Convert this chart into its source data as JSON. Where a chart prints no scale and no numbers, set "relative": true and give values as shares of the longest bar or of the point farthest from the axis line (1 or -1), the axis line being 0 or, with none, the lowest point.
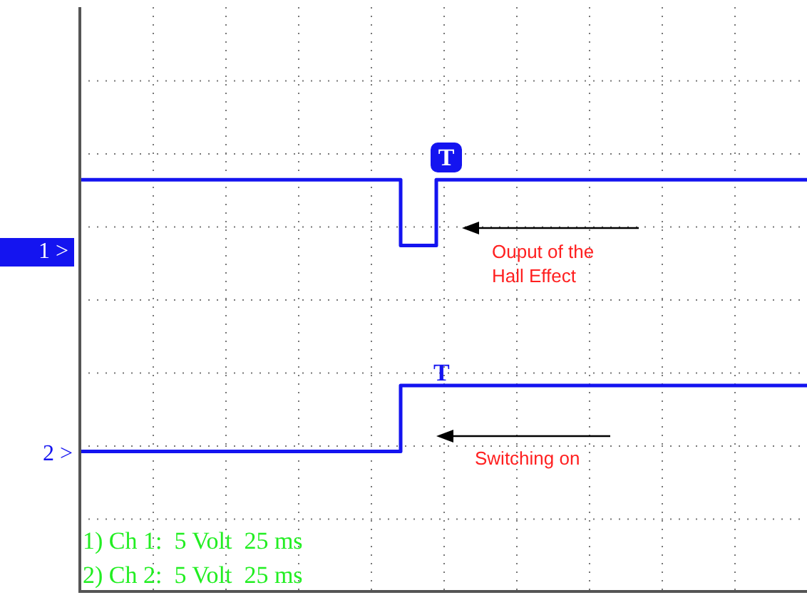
{
  "chart_data": {
    "type": "step",
    "relative": true,
    "grid": true,
    "legend": false,
    "tick_labels": false,
    "marker": "none",
    "line_style": "solid",
    "categories": [
      null,
      null,
      null,
      null,
      null,
      null,
      null,
      null,
      null,
      null,
      null,
      null,
      null,
      null,
      null,
      null,
      null,
      null,
      null,
      null,
      null,
      null,
      null,
      null,
      null,
      null,
      null,
      null,
      null,
      null,
      null,
      null,
      null,
      null,
      null,
      null,
      null,
      null,
      null,
      null,
      null,
      null,
      null,
      null,
      null,
      null,
      null,
      null,
      null,
      null,
      null,
      null,
      null,
      null,
      null,
      null,
      null,
      null,
      null,
      null,
      null,
      null,
      null,
      null,
      null,
      null,
      null,
      null,
      null,
      null,
      null,
      null,
      null,
      null,
      null,
      null,
      null,
      null,
      null,
      null,
      null,
      null,
      null,
      null,
      null,
      null,
      null,
      null,
      null,
      null,
      null,
      null,
      null,
      null,
      null,
      null,
      null,
      null,
      null,
      null,
      null,
      null,
      null
    ],
    "series": [
      {
        "color": "#1414f0",
        "values": [
          1,
          1,
          1,
          1,
          1,
          1,
          1,
          1,
          1,
          1,
          1,
          1,
          1,
          1,
          1,
          1,
          1,
          1,
          1,
          1,
          1,
          1,
          1,
          1,
          1,
          1,
          1,
          1,
          1,
          1,
          1,
          1,
          1,
          1,
          1,
          1,
          1,
          1,
          1,
          1,
          1,
          1,
          1,
          1,
          1,
          1,
          0.84,
          0.84,
          0.84,
          0.84,
          0.84,
          1,
          1,
          1,
          1,
          1,
          1,
          1,
          1,
          1,
          1,
          1,
          1,
          1,
          1,
          1,
          1,
          1,
          1,
          1,
          1,
          1,
          1,
          1,
          1,
          1,
          1,
          1,
          1,
          1,
          1,
          1,
          1,
          1,
          1,
          1,
          1,
          1,
          1,
          1,
          1,
          1,
          1,
          1,
          1,
          1,
          1,
          1,
          1,
          1,
          1,
          1,
          1
        ]
      },
      {
        "color": "#1414f0",
        "values": [
          0.34,
          0.34,
          0.34,
          0.34,
          0.34,
          0.34,
          0.34,
          0.34,
          0.34,
          0.34,
          0.34,
          0.34,
          0.34,
          0.34,
          0.34,
          0.34,
          0.34,
          0.34,
          0.34,
          0.34,
          0.34,
          0.34,
          0.34,
          0.34,
          0.34,
          0.34,
          0.34,
          0.34,
          0.34,
          0.34,
          0.34,
          0.34,
          0.34,
          0.34,
          0.34,
          0.34,
          0.34,
          0.34,
          0.34,
          0.34,
          0.34,
          0.34,
          0.34,
          0.34,
          0.34,
          0.34,
          0.5,
          0.5,
          0.5,
          0.5,
          0.5,
          0.5,
          0.5,
          0.5,
          0.5,
          0.5,
          0.5,
          0.5,
          0.5,
          0.5,
          0.5,
          0.5,
          0.5,
          0.5,
          0.5,
          0.5,
          0.5,
          0.5,
          0.5,
          0.5,
          0.5,
          0.5,
          0.5,
          0.5,
          0.5,
          0.5,
          0.5,
          0.5,
          0.5,
          0.5,
          0.5,
          0.5,
          0.5,
          0.5,
          0.5,
          0.5,
          0.5,
          0.5,
          0.5,
          0.5,
          0.5,
          0.5,
          0.5,
          0.5,
          0.5,
          0.5,
          0.5,
          0.5,
          0.5,
          0.5,
          0.5,
          0.5,
          0.5
        ]
      }
    ],
    "annotations": [
      "T",
      "T",
      "1 >",
      "2 >",
      "Ouput of the Hall Effect",
      "Switching on",
      "1) Ch 1:  5 Volt  25 ms",
      "2) Ch 2:  5 Volt  25 ms"
    ]
  }
}
